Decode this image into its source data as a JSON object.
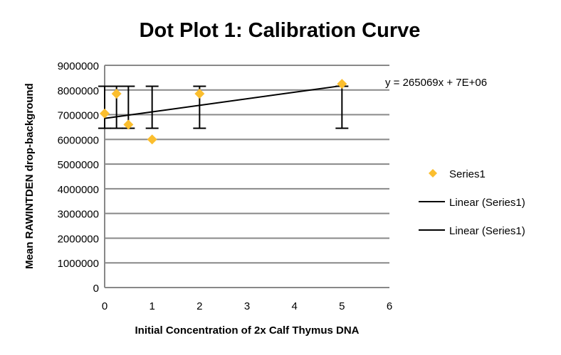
{
  "chart_data": {
    "type": "scatter",
    "title": "Dot Plot 1: Calibration Curve",
    "xlabel": "Initial Concentration of 2x Calf Thymus DNA",
    "ylabel": "Mean RAWINTDEN drop-background",
    "xlim": [
      0,
      6
    ],
    "ylim": [
      0,
      9000000
    ],
    "x_ticks": [
      "0",
      "1",
      "2",
      "3",
      "4",
      "5",
      "6"
    ],
    "y_ticks": [
      "0",
      "1000000",
      "2000000",
      "3000000",
      "4000000",
      "5000000",
      "6000000",
      "7000000",
      "8000000",
      "9000000"
    ],
    "grid": "horizontal",
    "series": [
      {
        "name": "Series1",
        "color": "#FBBE2E",
        "marker": "diamond",
        "points": [
          {
            "x": 0,
            "y": 7050000,
            "err_low": 6450000,
            "err_high": 8150000
          },
          {
            "x": 0.25,
            "y": 7850000,
            "err_low": 6450000,
            "err_high": 8150000
          },
          {
            "x": 0.5,
            "y": 6600000,
            "err_low": 6450000,
            "err_high": 8150000
          },
          {
            "x": 1,
            "y": 6000000,
            "err_low": 6450000,
            "err_high": 8150000
          },
          {
            "x": 2,
            "y": 7850000,
            "err_low": 6450000,
            "err_high": 8150000
          },
          {
            "x": 5,
            "y": 8250000,
            "err_low": 6450000,
            "err_high": 8150000
          }
        ]
      }
    ],
    "trendline": {
      "slope": 265069,
      "intercept": 6850000,
      "x_range": [
        0,
        5
      ],
      "equation": "y = 265069x + 7E+06"
    },
    "legend": {
      "position": "right",
      "entries": [
        {
          "label": "Series1",
          "kind": "marker"
        },
        {
          "label": "Linear  (Series1)",
          "kind": "line"
        },
        {
          "label": "Linear  (Series1)",
          "kind": "line"
        }
      ]
    }
  }
}
